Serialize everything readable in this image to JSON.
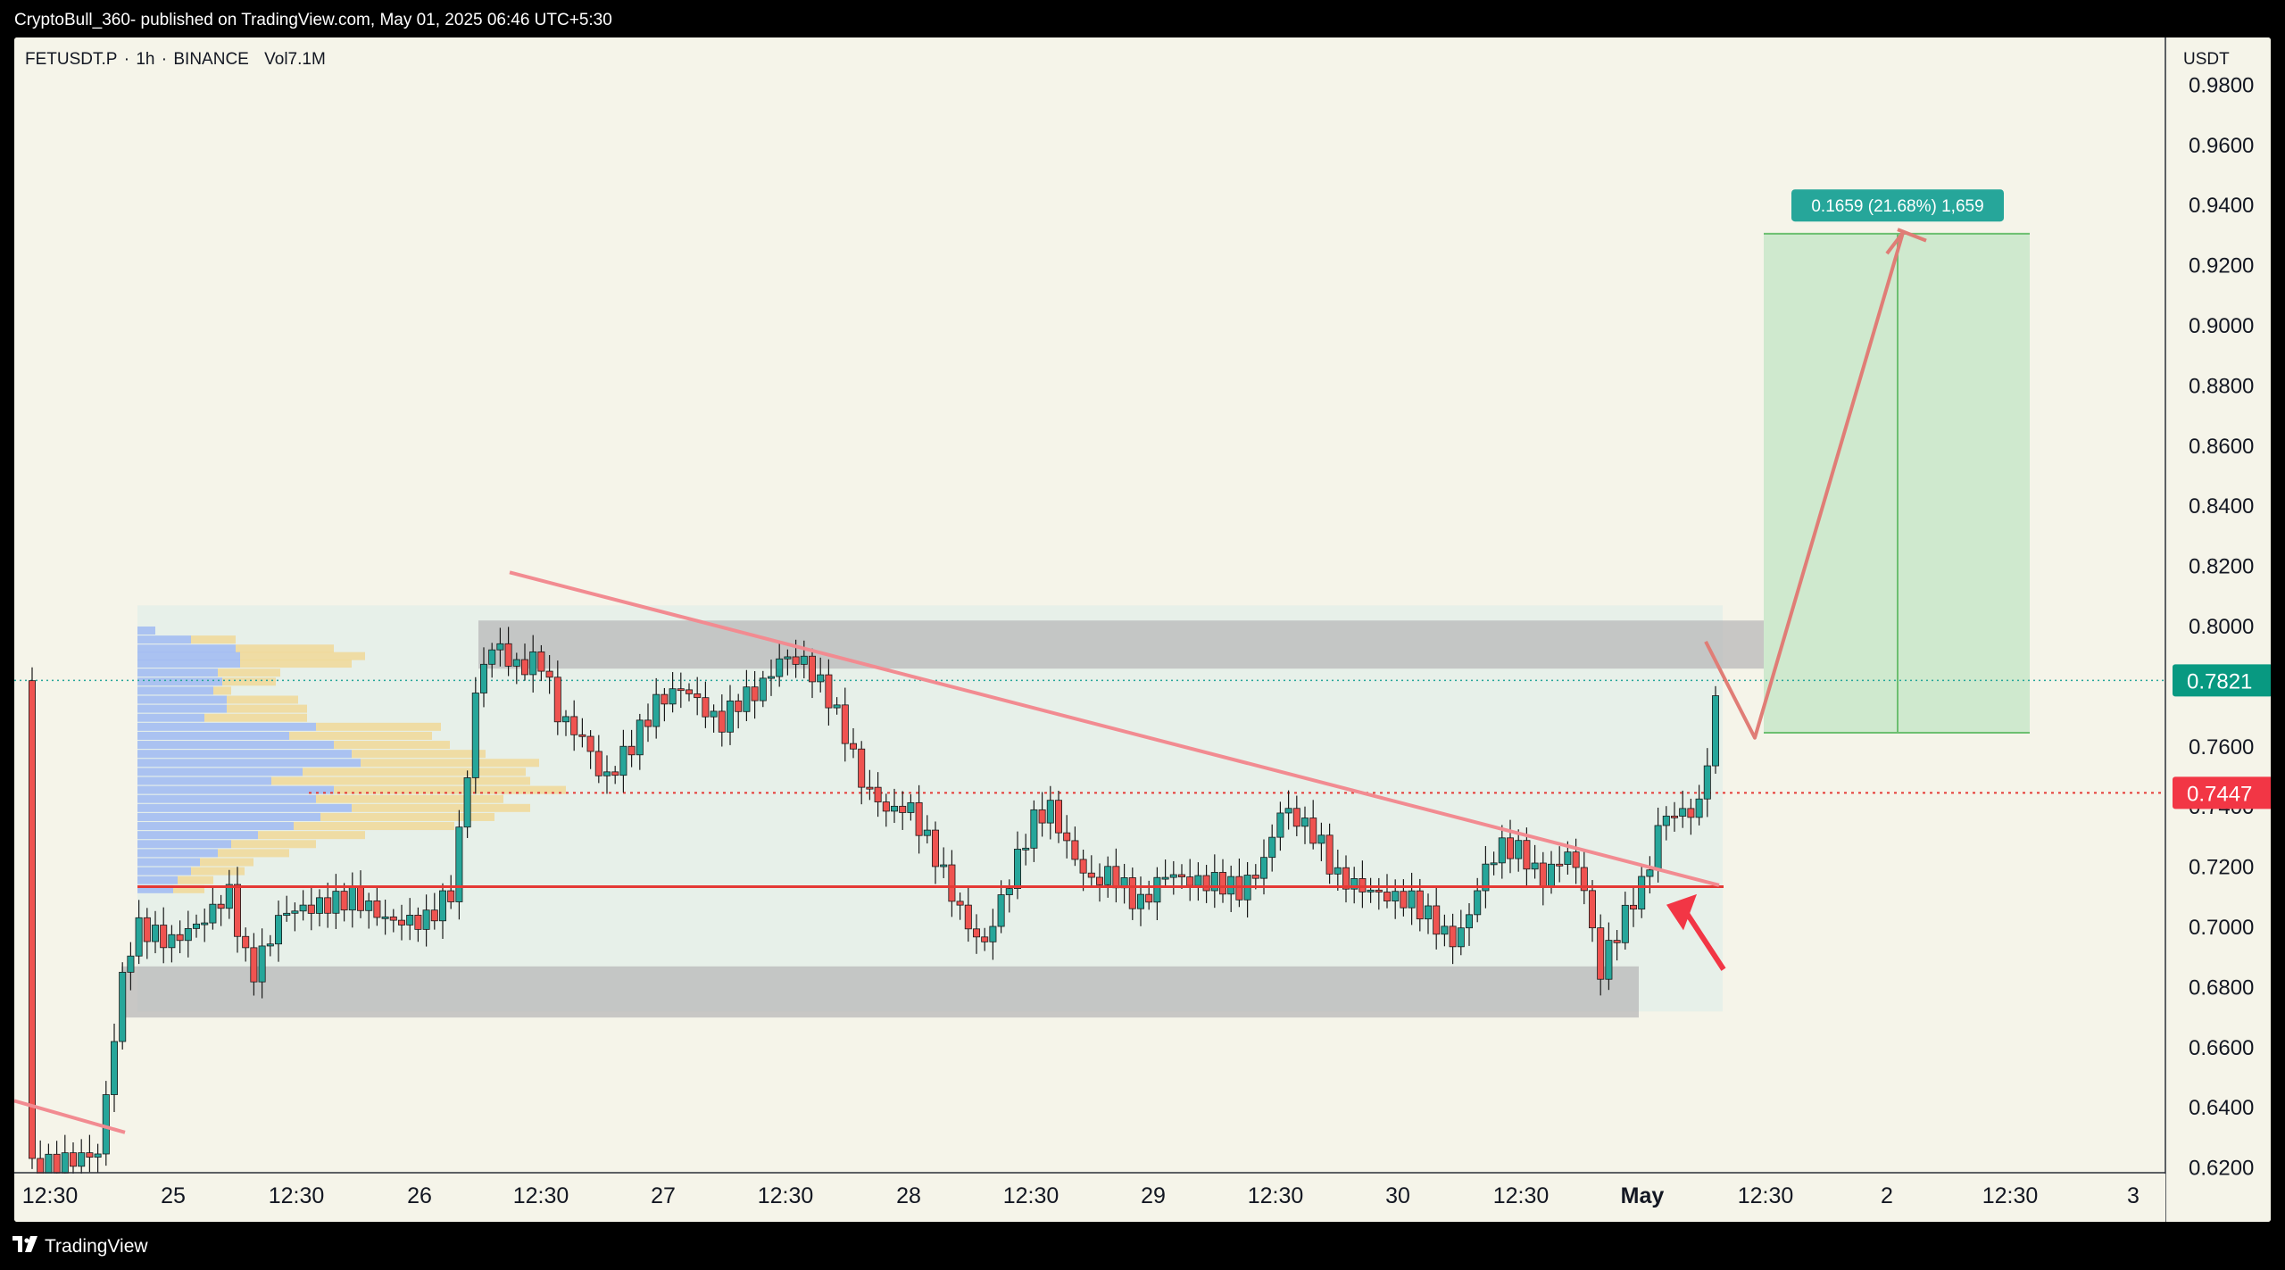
{
  "header": {
    "publish_line": "CryptoBull_360- published on TradingView.com, May 01, 2025 06:46 UTC+5:30"
  },
  "chart_header": {
    "symbol": "FETUSDT.P",
    "separator": "·",
    "interval": "1h",
    "exchange": "BINANCE",
    "volume_label": "Vol",
    "volume_value": "7.1M"
  },
  "price_axis": {
    "currency": "USDT",
    "ticks": [
      "0.9800",
      "0.9600",
      "0.9400",
      "0.9200",
      "0.9000",
      "0.8800",
      "0.8600",
      "0.8400",
      "0.8200",
      "0.8000",
      "0.7600",
      "0.7400",
      "0.7200",
      "0.7000",
      "0.6800",
      "0.6600",
      "0.6400",
      "0.6200"
    ],
    "current_price": "0.7821",
    "marked_price": "0.7447"
  },
  "time_axis": {
    "labels": [
      "12:30",
      "25",
      "12:30",
      "26",
      "12:30",
      "27",
      "12:30",
      "28",
      "12:30",
      "29",
      "12:30",
      "30",
      "12:30",
      "May",
      "12:30",
      "2",
      "12:30",
      "3"
    ]
  },
  "position_tool": {
    "label": "0.1659 (21.68%) 1,659"
  },
  "footer": {
    "brand": "TradingView"
  },
  "colors": {
    "background": "#f5f4e9",
    "up_candle": "#26a69a",
    "down_candle": "#ef5350",
    "trendline": "#f28b91",
    "support_line": "#e53935",
    "target_zone": "#c8e6c9",
    "target_label": "#26a69a",
    "zone_gray": "#b8b8b8",
    "current_price_label": "#089981",
    "marked_price_label": "#f23645"
  },
  "chart_data": {
    "type": "candlestick",
    "symbol": "FETUSDT.P",
    "interval": "1h",
    "exchange": "BINANCE",
    "ylim": [
      0.62,
      0.99
    ],
    "x_tick_labels": [
      "12:30",
      "25",
      "12:30",
      "26",
      "12:30",
      "27",
      "12:30",
      "28",
      "12:30",
      "29",
      "12:30",
      "30",
      "12:30",
      "May",
      "12:30",
      "2",
      "12:30",
      "3"
    ],
    "ohlc_approx": [
      {
        "label": "Apr 24 12:30",
        "close": 0.62
      },
      {
        "label": "Apr 25 00:00",
        "close": 0.698
      },
      {
        "label": "Apr 25 12:30",
        "close": 0.702
      },
      {
        "label": "Apr 26 00:00",
        "close": 0.712
      },
      {
        "label": "Apr 26 06:00",
        "close": 0.788
      },
      {
        "label": "Apr 26 12:30",
        "close": 0.768
      },
      {
        "label": "Apr 27 00:00",
        "close": 0.776
      },
      {
        "label": "Apr 27 12:30",
        "close": 0.785
      },
      {
        "label": "Apr 28 00:00",
        "close": 0.742
      },
      {
        "label": "Apr 28 06:00",
        "close": 0.695
      },
      {
        "label": "Apr 28 12:30",
        "close": 0.735
      },
      {
        "label": "Apr 29 00:00",
        "close": 0.715
      },
      {
        "label": "Apr 29 12:30",
        "close": 0.74
      },
      {
        "label": "Apr 30 00:00",
        "close": 0.705
      },
      {
        "label": "Apr 30 12:30",
        "close": 0.725
      },
      {
        "label": "May 01 00:00",
        "close": 0.682
      },
      {
        "label": "May 01 04:00",
        "close": 0.737
      },
      {
        "label": "May 01 06:00",
        "close": 0.7821
      }
    ],
    "levels": {
      "resistance_zone": [
        0.786,
        0.802
      ],
      "support_zone": [
        0.67,
        0.687
      ],
      "support_line": 0.7135,
      "marked_price": 0.7447,
      "current_price": 0.7821,
      "target_top": 0.9306,
      "entry": 0.7647
    },
    "annotations": [
      "0.1659 (21.68%) 1,659"
    ]
  }
}
